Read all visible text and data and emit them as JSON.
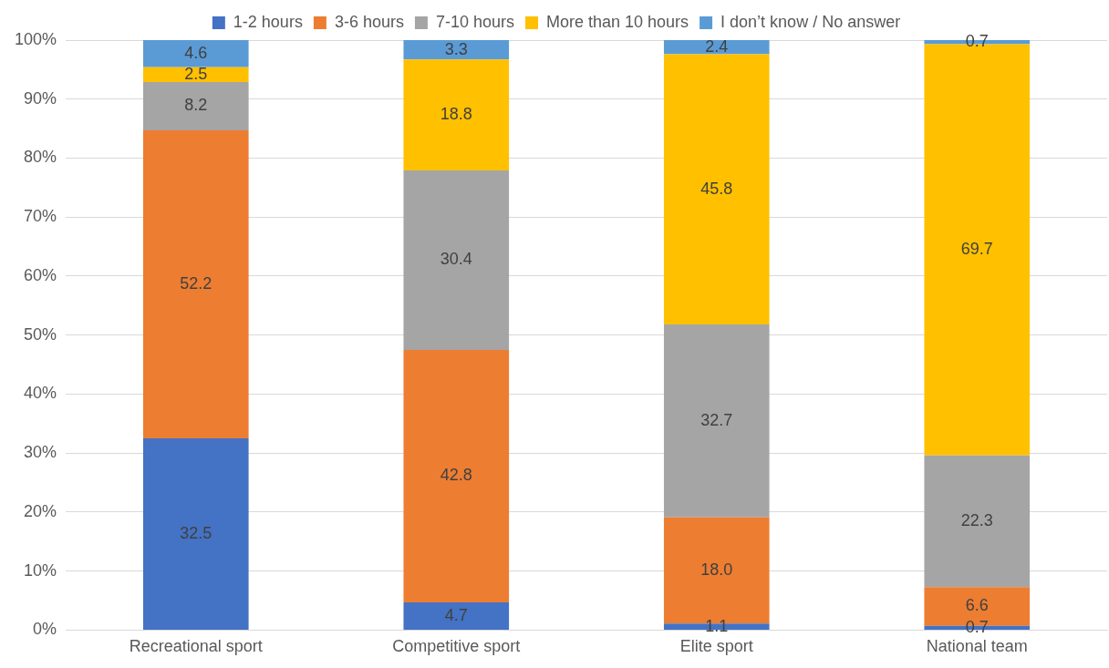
{
  "chart_data": {
    "type": "bar",
    "stacked": true,
    "categories": [
      "Recreational sport",
      "Competitive sport",
      "Elite sport",
      "National team"
    ],
    "series": [
      {
        "name": "1-2 hours",
        "color": "#4472c4",
        "values": [
          32.5,
          4.7,
          1.1,
          0.7
        ],
        "value_labels": [
          "32.5",
          "4.7",
          "1.1",
          "0.7"
        ]
      },
      {
        "name": "3-6 hours",
        "color": "#ed7d31",
        "values": [
          52.2,
          42.8,
          18.0,
          6.6
        ],
        "value_labels": [
          "52.2",
          "42.8",
          "18.0",
          "6.6"
        ]
      },
      {
        "name": "7-10 hours",
        "color": "#a5a5a5",
        "values": [
          8.2,
          30.4,
          32.7,
          22.3
        ],
        "value_labels": [
          "8.2",
          "30.4",
          "32.7",
          "22.3"
        ]
      },
      {
        "name": "More than 10 hours",
        "color": "#ffc000",
        "values": [
          2.5,
          18.8,
          45.8,
          69.7
        ],
        "value_labels": [
          "2.5",
          "18.8",
          "45.8",
          "69.7"
        ]
      },
      {
        "name": "I don’t know / No answer",
        "color": "#5b9bd5",
        "values": [
          4.6,
          3.3,
          2.4,
          0.7
        ],
        "value_labels": [
          "4.6",
          "3.3",
          "2.4",
          "0.7"
        ]
      }
    ],
    "ylim": [
      0,
      100
    ],
    "yticks": [
      {
        "value": 0,
        "label": "0%"
      },
      {
        "value": 10,
        "label": "10%"
      },
      {
        "value": 20,
        "label": "20%"
      },
      {
        "value": 30,
        "label": "30%"
      },
      {
        "value": 40,
        "label": "40%"
      },
      {
        "value": 50,
        "label": "50%"
      },
      {
        "value": 60,
        "label": "60%"
      },
      {
        "value": 70,
        "label": "70%"
      },
      {
        "value": 80,
        "label": "80%"
      },
      {
        "value": 90,
        "label": "90%"
      },
      {
        "value": 100,
        "label": "100%"
      }
    ],
    "grid": "y",
    "legend": "top"
  }
}
